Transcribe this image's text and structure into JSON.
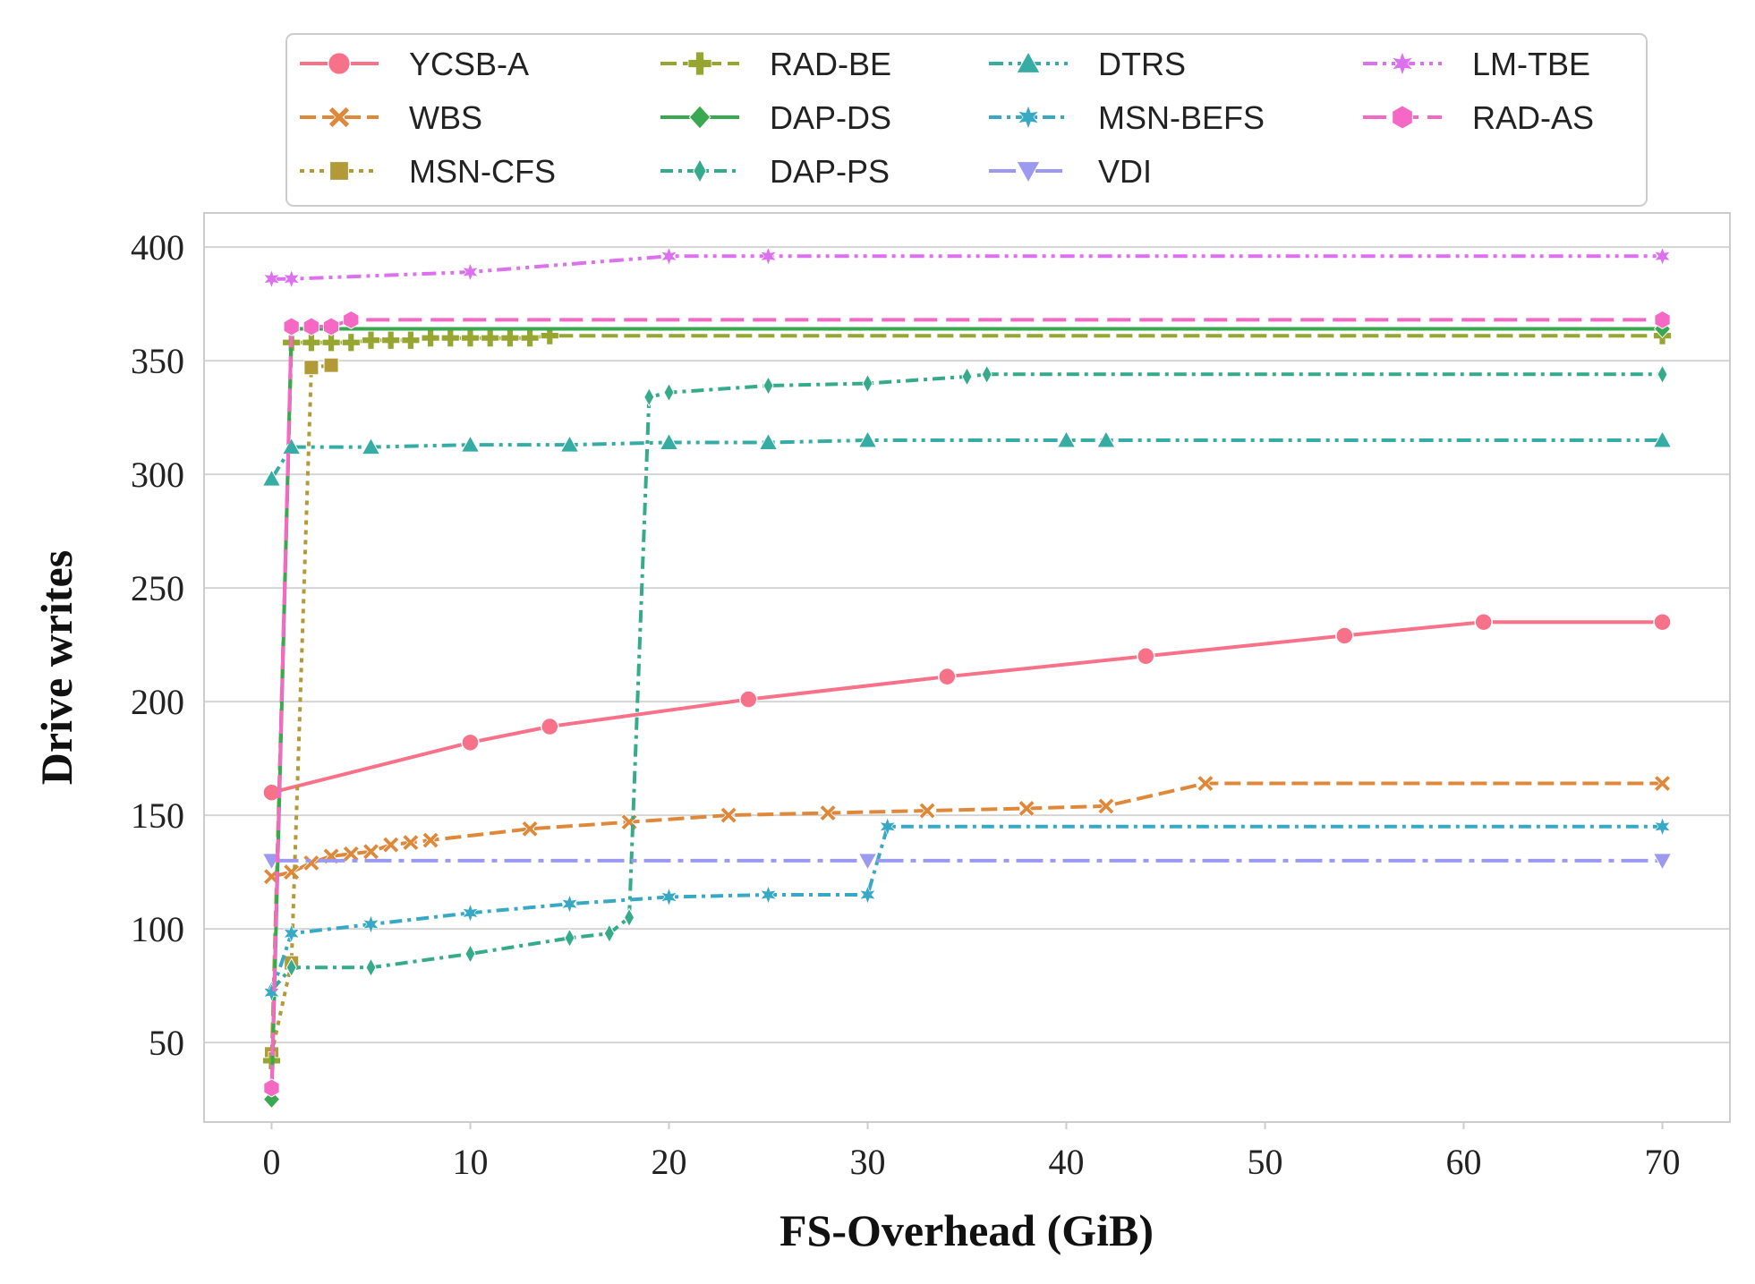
{
  "chart_data": {
    "type": "line",
    "xlabel": "FS-Overhead (GiB)",
    "ylabel": "Drive writes",
    "xlim": [
      -3.4,
      73.4
    ],
    "ylim": [
      15,
      415
    ],
    "xticks": [
      0,
      10,
      20,
      30,
      40,
      50,
      60,
      70
    ],
    "yticks": [
      50,
      100,
      150,
      200,
      250,
      300,
      350,
      400
    ],
    "grid": true,
    "legend_position": "top",
    "series": [
      {
        "name": "YCSB-A",
        "color": "#f77189",
        "dash": "solid",
        "marker": "circle",
        "x": [
          0,
          10,
          14,
          24,
          34,
          44,
          54,
          61,
          70
        ],
        "y": [
          160,
          182,
          189,
          201,
          211,
          220,
          229,
          235,
          235
        ]
      },
      {
        "name": "WBS",
        "color": "#e0883a",
        "dash": "dashed",
        "marker": "x",
        "x": [
          0,
          1,
          2,
          3,
          4,
          5,
          6,
          7,
          8,
          13,
          18,
          23,
          28,
          33,
          38,
          42,
          47,
          70
        ],
        "y": [
          123,
          125,
          129,
          132,
          133,
          134,
          137,
          138,
          139,
          144,
          147,
          150,
          151,
          152,
          153,
          154,
          164,
          164
        ]
      },
      {
        "name": "MSN-CFS",
        "color": "#b39a38",
        "dash": "dotted",
        "marker": "square",
        "x": [
          0,
          1,
          2,
          3
        ],
        "y": [
          45,
          85,
          347,
          348
        ]
      },
      {
        "name": "RAD-BE",
        "color": "#96a630",
        "dash": "dashed",
        "marker": "plus",
        "x": [
          0,
          1,
          2,
          3,
          4,
          5,
          6,
          7,
          8,
          9,
          10,
          11,
          12,
          13,
          14,
          70
        ],
        "y": [
          42,
          358,
          358,
          358,
          358,
          359,
          359,
          359,
          360,
          360,
          360,
          360,
          360,
          360,
          361,
          361
        ]
      },
      {
        "name": "DAP-DS",
        "color": "#3aa850",
        "dash": "solid",
        "marker": "diamond",
        "x": [
          0,
          1,
          70
        ],
        "y": [
          25,
          364,
          364
        ]
      },
      {
        "name": "DAP-PS",
        "color": "#35ab8b",
        "dash": "dashdot",
        "marker": "diamond-thin",
        "x": [
          0,
          1,
          5,
          10,
          15,
          17,
          18,
          19,
          20,
          25,
          30,
          35,
          36,
          70
        ],
        "y": [
          73,
          83,
          83,
          89,
          96,
          98,
          105,
          334,
          336,
          339,
          340,
          343,
          344,
          344
        ]
      },
      {
        "name": "DTRS",
        "color": "#36ada4",
        "dash": "dashdotdot",
        "marker": "triangle-up",
        "x": [
          0,
          1,
          5,
          10,
          15,
          20,
          25,
          30,
          40,
          42,
          70
        ],
        "y": [
          298,
          312,
          312,
          313,
          313,
          314,
          314,
          315,
          315,
          315,
          315
        ]
      },
      {
        "name": "MSN-BEFS",
        "color": "#38a9c5",
        "dash": "dashdot",
        "marker": "star",
        "x": [
          0,
          1,
          5,
          10,
          15,
          20,
          25,
          30,
          31,
          70
        ],
        "y": [
          72,
          98,
          102,
          107,
          111,
          114,
          115,
          115,
          145,
          145
        ]
      },
      {
        "name": "VDI",
        "color": "#9b9af0",
        "dash": "longdashdot",
        "marker": "triangle-down",
        "x": [
          0,
          30,
          70
        ],
        "y": [
          130,
          130,
          130
        ]
      },
      {
        "name": "LM-TBE",
        "color": "#dc70ee",
        "dash": "dashdotdot",
        "marker": "star",
        "x": [
          0,
          1,
          10,
          20,
          25,
          70
        ],
        "y": [
          386,
          386,
          389,
          396,
          396,
          396
        ]
      },
      {
        "name": "RAD-AS",
        "color": "#f568c4",
        "dash": "longdash",
        "marker": "hexagon",
        "x": [
          0,
          1,
          2,
          3,
          4,
          70
        ],
        "y": [
          30,
          365,
          365,
          365,
          368,
          368
        ]
      }
    ]
  }
}
